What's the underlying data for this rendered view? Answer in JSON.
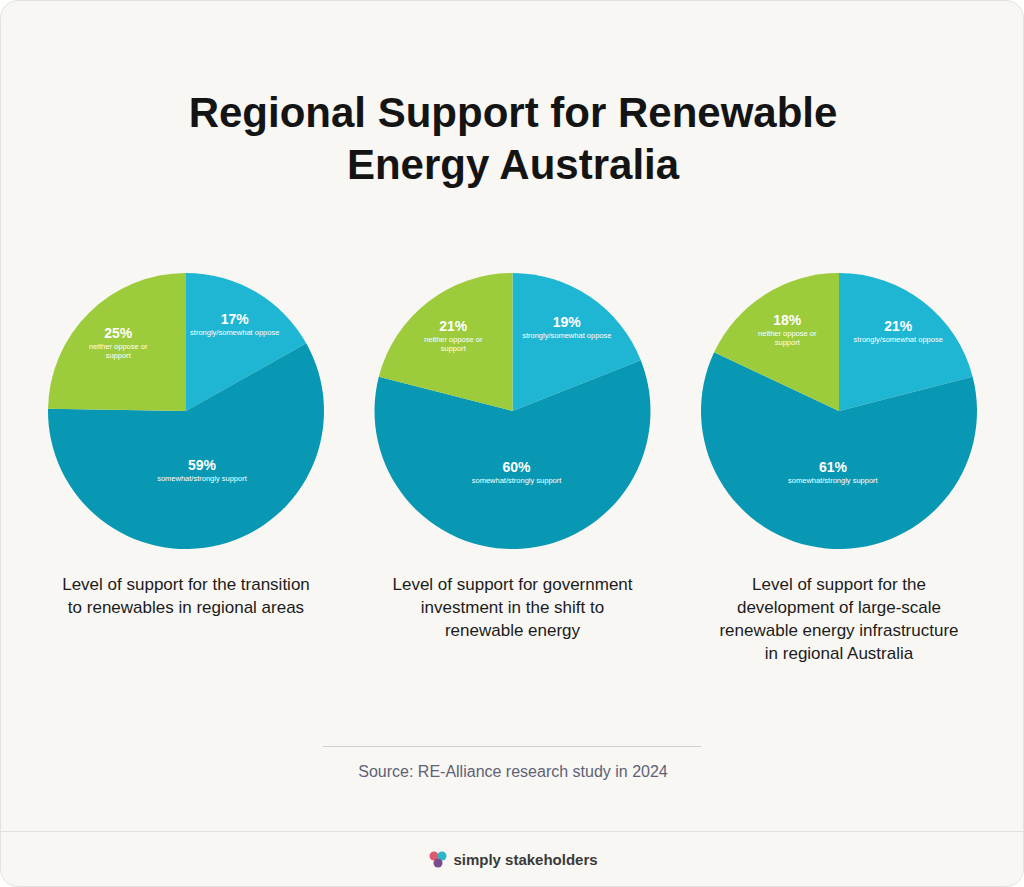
{
  "header": {
    "title": "Regional Support for Renewable Energy Australia"
  },
  "chart_data": [
    {
      "type": "pie",
      "title": "Level of support for the transition to renewables in regional areas",
      "categories": [
        "strongly/somewhat oppose",
        "somewhat/strongly support",
        "neither oppose or support"
      ],
      "values": [
        17,
        59,
        25
      ],
      "value_labels": [
        "17%",
        "59%",
        "25%"
      ],
      "colors": [
        "#1fb6d3",
        "#0898b3",
        "#9ccb3b"
      ],
      "data_labels": true
    },
    {
      "type": "pie",
      "title": "Level of support for government investment in the shift to renewable energy",
      "categories": [
        "strongly/somewhat oppose",
        "somewhat/strongly support",
        "neither oppose or support"
      ],
      "values": [
        19,
        60,
        21
      ],
      "value_labels": [
        "19%",
        "60%",
        "21%"
      ],
      "colors": [
        "#1fb6d3",
        "#0898b3",
        "#9ccb3b"
      ],
      "data_labels": true
    },
    {
      "type": "pie",
      "title": "Level of support for the development of large-scale renewable energy infrastructure in regional Australia",
      "categories": [
        "strongly/somewhat oppose",
        "somewhat/strongly support",
        "neither oppose or support"
      ],
      "values": [
        21,
        61,
        18
      ],
      "value_labels": [
        "21%",
        "61%",
        "18%"
      ],
      "colors": [
        "#1fb6d3",
        "#0898b3",
        "#9ccb3b"
      ],
      "data_labels": true
    }
  ],
  "footer": {
    "source": "Source: RE-Alliance research study in 2024",
    "brand": "simply stakeholders"
  }
}
